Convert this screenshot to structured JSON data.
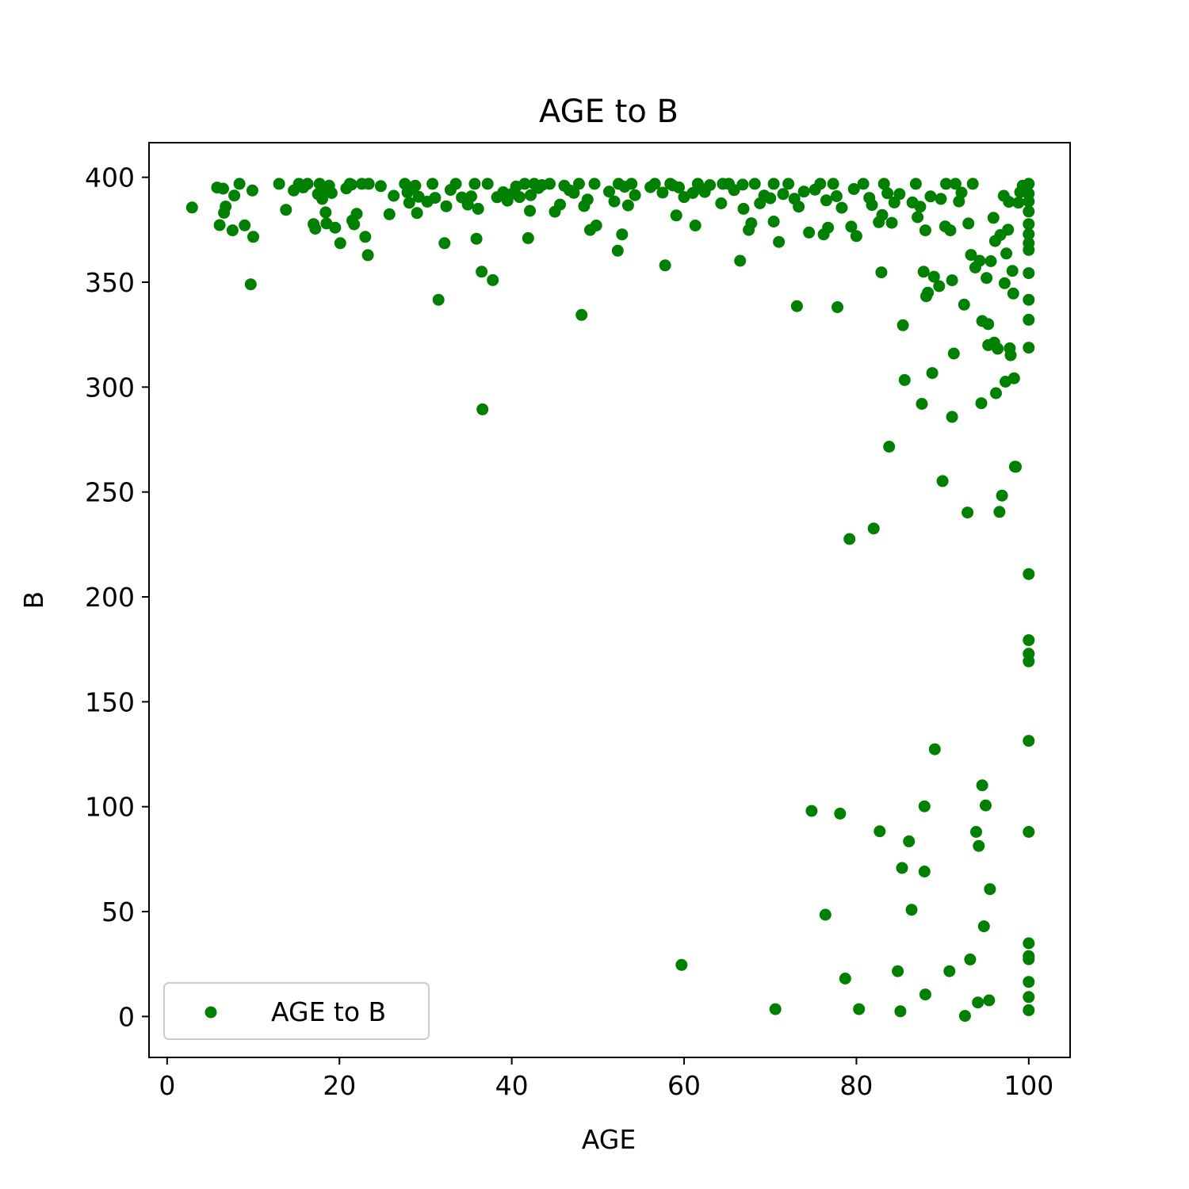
{
  "chart_data": {
    "type": "scatter",
    "title": "AGE to B",
    "xlabel": "AGE",
    "ylabel": "B",
    "xlim": [
      -2.1,
      104.8
    ],
    "ylim": [
      -19.5,
      416.5
    ],
    "xticks": [
      0,
      20,
      40,
      60,
      80,
      100
    ],
    "yticks": [
      0,
      50,
      100,
      150,
      200,
      250,
      300,
      350,
      400
    ],
    "grid": false,
    "legend_position": "lower-left",
    "series": [
      {
        "name": "AGE to B",
        "color": "#008000",
        "points": [
          [
            2.9,
            385.6
          ],
          [
            5.8,
            395.1
          ],
          [
            6.1,
            377.2
          ],
          [
            6.5,
            394.6
          ],
          [
            6.6,
            383.1
          ],
          [
            6.8,
            386.1
          ],
          [
            7.6,
            374.7
          ],
          [
            7.8,
            391.3
          ],
          [
            8.4,
            396.9
          ],
          [
            9.0,
            377.1
          ],
          [
            9.7,
            349.0
          ],
          [
            9.9,
            393.7
          ],
          [
            10.0,
            371.6
          ],
          [
            13.0,
            396.9
          ],
          [
            13.8,
            384.5
          ],
          [
            14.7,
            393.7
          ],
          [
            15.3,
            396.9
          ],
          [
            15.8,
            395.2
          ],
          [
            16.3,
            396.9
          ],
          [
            17.0,
            377.7
          ],
          [
            17.2,
            375.5
          ],
          [
            17.5,
            392.0
          ],
          [
            17.7,
            396.9
          ],
          [
            18.0,
            389.7
          ],
          [
            18.4,
            394.2
          ],
          [
            18.4,
            383.3
          ],
          [
            18.5,
            378.0
          ],
          [
            18.8,
            396.0
          ],
          [
            19.1,
            392.5
          ],
          [
            19.5,
            376.0
          ],
          [
            20.1,
            368.6
          ],
          [
            20.8,
            394.7
          ],
          [
            21.2,
            396.9
          ],
          [
            21.4,
            396.5
          ],
          [
            21.5,
            379.4
          ],
          [
            21.7,
            377.6
          ],
          [
            22.0,
            382.6
          ],
          [
            22.6,
            396.9
          ],
          [
            23.0,
            371.6
          ],
          [
            23.3,
            362.9
          ],
          [
            23.4,
            396.9
          ],
          [
            24.8,
            395.8
          ],
          [
            25.8,
            382.4
          ],
          [
            26.3,
            391.2
          ],
          [
            27.6,
            396.9
          ],
          [
            27.9,
            392.8
          ],
          [
            28.1,
            387.9
          ],
          [
            28.4,
            394.8
          ],
          [
            28.8,
            396.0
          ],
          [
            29.0,
            383.0
          ],
          [
            29.2,
            390.7
          ],
          [
            30.2,
            388.4
          ],
          [
            30.8,
            396.9
          ],
          [
            31.1,
            390.2
          ],
          [
            31.5,
            341.6
          ],
          [
            32.2,
            368.6
          ],
          [
            32.4,
            386.2
          ],
          [
            32.9,
            394.0
          ],
          [
            33.5,
            396.9
          ],
          [
            34.2,
            390.4
          ],
          [
            34.9,
            387.0
          ],
          [
            35.3,
            390.9
          ],
          [
            35.7,
            396.9
          ],
          [
            35.9,
            370.7
          ],
          [
            36.1,
            385.0
          ],
          [
            36.5,
            355.0
          ],
          [
            36.6,
            289.4
          ],
          [
            37.2,
            396.9
          ],
          [
            37.8,
            351.0
          ],
          [
            38.3,
            390.5
          ],
          [
            39.0,
            392.9
          ],
          [
            39.5,
            388.9
          ],
          [
            40.0,
            392.1
          ],
          [
            40.5,
            395.6
          ],
          [
            40.9,
            390.6
          ],
          [
            41.5,
            396.9
          ],
          [
            41.9,
            371.0
          ],
          [
            42.1,
            384.0
          ],
          [
            42.2,
            391.5
          ],
          [
            42.6,
            396.9
          ],
          [
            43.1,
            394.9
          ],
          [
            43.5,
            396.3
          ],
          [
            44.4,
            396.9
          ],
          [
            45.0,
            383.6
          ],
          [
            45.6,
            387.0
          ],
          [
            46.1,
            396.0
          ],
          [
            46.7,
            393.8
          ],
          [
            47.2,
            392.6
          ],
          [
            47.8,
            396.9
          ],
          [
            48.1,
            334.4
          ],
          [
            48.4,
            386.3
          ],
          [
            48.8,
            389.4
          ],
          [
            49.1,
            374.9
          ],
          [
            49.6,
            396.9
          ],
          [
            49.8,
            377.0
          ],
          [
            51.3,
            393.2
          ],
          [
            51.9,
            388.5
          ],
          [
            52.3,
            365.0
          ],
          [
            52.4,
            396.9
          ],
          [
            52.8,
            372.8
          ],
          [
            53.1,
            395.5
          ],
          [
            53.5,
            386.6
          ],
          [
            53.9,
            396.9
          ],
          [
            54.3,
            391.5
          ],
          [
            56.1,
            395.3
          ],
          [
            56.6,
            396.9
          ],
          [
            57.5,
            392.7
          ],
          [
            57.8,
            358.0
          ],
          [
            58.4,
            396.9
          ],
          [
            58.7,
            396.1
          ],
          [
            59.1,
            381.8
          ],
          [
            59.4,
            395.2
          ],
          [
            59.7,
            24.6
          ],
          [
            60.0,
            390.6
          ],
          [
            61.0,
            392.5
          ],
          [
            61.3,
            377.0
          ],
          [
            61.6,
            396.9
          ],
          [
            62.0,
            394.5
          ],
          [
            62.4,
            393.0
          ],
          [
            63.0,
            396.3
          ],
          [
            64.3,
            387.6
          ],
          [
            64.5,
            396.9
          ],
          [
            65.2,
            396.9
          ],
          [
            65.8,
            393.9
          ],
          [
            66.5,
            360.2
          ],
          [
            66.8,
            396.5
          ],
          [
            66.9,
            385.0
          ],
          [
            67.5,
            374.9
          ],
          [
            67.8,
            378.1
          ],
          [
            68.2,
            396.9
          ],
          [
            68.8,
            387.6
          ],
          [
            69.3,
            391.3
          ],
          [
            70.0,
            390.0
          ],
          [
            70.4,
            378.9
          ],
          [
            70.4,
            396.9
          ],
          [
            70.6,
            3.5
          ],
          [
            71.0,
            369.2
          ],
          [
            71.5,
            392.0
          ],
          [
            72.1,
            396.9
          ],
          [
            72.8,
            389.8
          ],
          [
            73.1,
            338.6
          ],
          [
            73.3,
            386.0
          ],
          [
            73.9,
            393.2
          ],
          [
            74.5,
            373.7
          ],
          [
            74.8,
            98.0
          ],
          [
            75.2,
            394.1
          ],
          [
            75.8,
            396.9
          ],
          [
            76.2,
            372.8
          ],
          [
            76.4,
            48.5
          ],
          [
            76.5,
            389.0
          ],
          [
            76.7,
            376.0
          ],
          [
            77.3,
            396.9
          ],
          [
            77.7,
            391.0
          ],
          [
            77.8,
            338.1
          ],
          [
            78.1,
            96.7
          ],
          [
            78.3,
            385.5
          ],
          [
            78.7,
            18.1
          ],
          [
            79.2,
            227.6
          ],
          [
            79.4,
            376.5
          ],
          [
            79.7,
            394.4
          ],
          [
            80.0,
            372.0
          ],
          [
            80.3,
            3.5
          ],
          [
            80.8,
            396.9
          ],
          [
            81.5,
            390.2
          ],
          [
            81.8,
            386.8
          ],
          [
            82.0,
            232.6
          ],
          [
            82.6,
            378.6
          ],
          [
            82.7,
            88.3
          ],
          [
            82.9,
            354.7
          ],
          [
            83.0,
            382.0
          ],
          [
            83.2,
            396.9
          ],
          [
            83.6,
            392.4
          ],
          [
            83.8,
            271.6
          ],
          [
            84.1,
            378.3
          ],
          [
            84.4,
            388.0
          ],
          [
            84.8,
            21.6
          ],
          [
            85.0,
            392.0
          ],
          [
            85.1,
            2.5
          ],
          [
            85.3,
            70.8
          ],
          [
            85.4,
            329.5
          ],
          [
            85.6,
            303.4
          ],
          [
            86.1,
            83.5
          ],
          [
            86.4,
            50.9
          ],
          [
            86.5,
            388.0
          ],
          [
            86.9,
            396.9
          ],
          [
            87.1,
            381.0
          ],
          [
            87.4,
            386.0
          ],
          [
            87.6,
            292.0
          ],
          [
            87.8,
            355.0
          ],
          [
            87.9,
            100.2
          ],
          [
            87.9,
            69.1
          ],
          [
            88.0,
            10.5
          ],
          [
            88.0,
            374.7
          ],
          [
            88.1,
            343.3
          ],
          [
            88.3,
            345.0
          ],
          [
            88.6,
            390.9
          ],
          [
            88.8,
            306.7
          ],
          [
            89.0,
            352.6
          ],
          [
            89.1,
            127.4
          ],
          [
            89.6,
            348.1
          ],
          [
            89.8,
            389.7
          ],
          [
            90.0,
            255.2
          ],
          [
            90.3,
            376.6
          ],
          [
            90.4,
            396.9
          ],
          [
            90.8,
            21.6
          ],
          [
            90.9,
            374.7
          ],
          [
            91.1,
            350.9
          ],
          [
            91.1,
            285.8
          ],
          [
            91.3,
            316.0
          ],
          [
            91.5,
            396.9
          ],
          [
            91.9,
            388.5
          ],
          [
            92.2,
            392.7
          ],
          [
            92.5,
            339.3
          ],
          [
            92.6,
            0.3
          ],
          [
            92.9,
            240.2
          ],
          [
            93.0,
            378.0
          ],
          [
            93.2,
            27.2
          ],
          [
            93.3,
            363.0
          ],
          [
            93.5,
            396.9
          ],
          [
            93.8,
            357.0
          ],
          [
            93.9,
            88.0
          ],
          [
            94.1,
            6.7
          ],
          [
            94.2,
            81.3
          ],
          [
            94.3,
            360.2
          ],
          [
            94.5,
            292.3
          ],
          [
            94.6,
            110.2
          ],
          [
            94.6,
            331.5
          ],
          [
            94.8,
            43.0
          ],
          [
            95.0,
            100.6
          ],
          [
            95.1,
            352.0
          ],
          [
            95.3,
            330.0
          ],
          [
            95.3,
            320.0
          ],
          [
            95.4,
            7.7
          ],
          [
            95.5,
            60.7
          ],
          [
            95.6,
            360.0
          ],
          [
            95.9,
            380.7
          ],
          [
            96.0,
            321.2
          ],
          [
            96.1,
            369.6
          ],
          [
            96.2,
            297.1
          ],
          [
            96.4,
            318.3
          ],
          [
            96.6,
            240.5
          ],
          [
            96.7,
            372.5
          ],
          [
            96.9,
            248.3
          ],
          [
            97.1,
            391.2
          ],
          [
            97.2,
            349.5
          ],
          [
            97.3,
            302.6
          ],
          [
            97.4,
            363.7
          ],
          [
            97.6,
            375.0
          ],
          [
            97.7,
            388.3
          ],
          [
            97.8,
            318.5
          ],
          [
            97.9,
            315.2
          ],
          [
            98.1,
            355.4
          ],
          [
            98.2,
            344.6
          ],
          [
            98.3,
            304.2
          ],
          [
            98.4,
            262.1
          ],
          [
            98.5,
            262.0
          ],
          [
            98.8,
            387.9
          ],
          [
            99.0,
            392.9
          ],
          [
            99.3,
            396.0
          ],
          [
            100.0,
            396.9
          ],
          [
            100.0,
            392.2
          ],
          [
            100.0,
            388.5
          ],
          [
            100.0,
            383.7
          ],
          [
            100.0,
            377.7
          ],
          [
            100.0,
            372.9
          ],
          [
            100.0,
            368.6
          ],
          [
            100.0,
            365.4
          ],
          [
            100.0,
            354.3
          ],
          [
            100.0,
            341.6
          ],
          [
            100.0,
            332.1
          ],
          [
            100.0,
            318.8
          ],
          [
            100.0,
            210.9
          ],
          [
            100.0,
            179.4
          ],
          [
            100.0,
            172.9
          ],
          [
            100.0,
            169.3
          ],
          [
            100.0,
            131.4
          ],
          [
            100.0,
            88.0
          ],
          [
            100.0,
            34.9
          ],
          [
            100.0,
            28.8
          ],
          [
            100.0,
            27.3
          ],
          [
            100.0,
            16.5
          ],
          [
            100.0,
            9.3
          ],
          [
            100.0,
            3.0
          ]
        ]
      }
    ]
  }
}
